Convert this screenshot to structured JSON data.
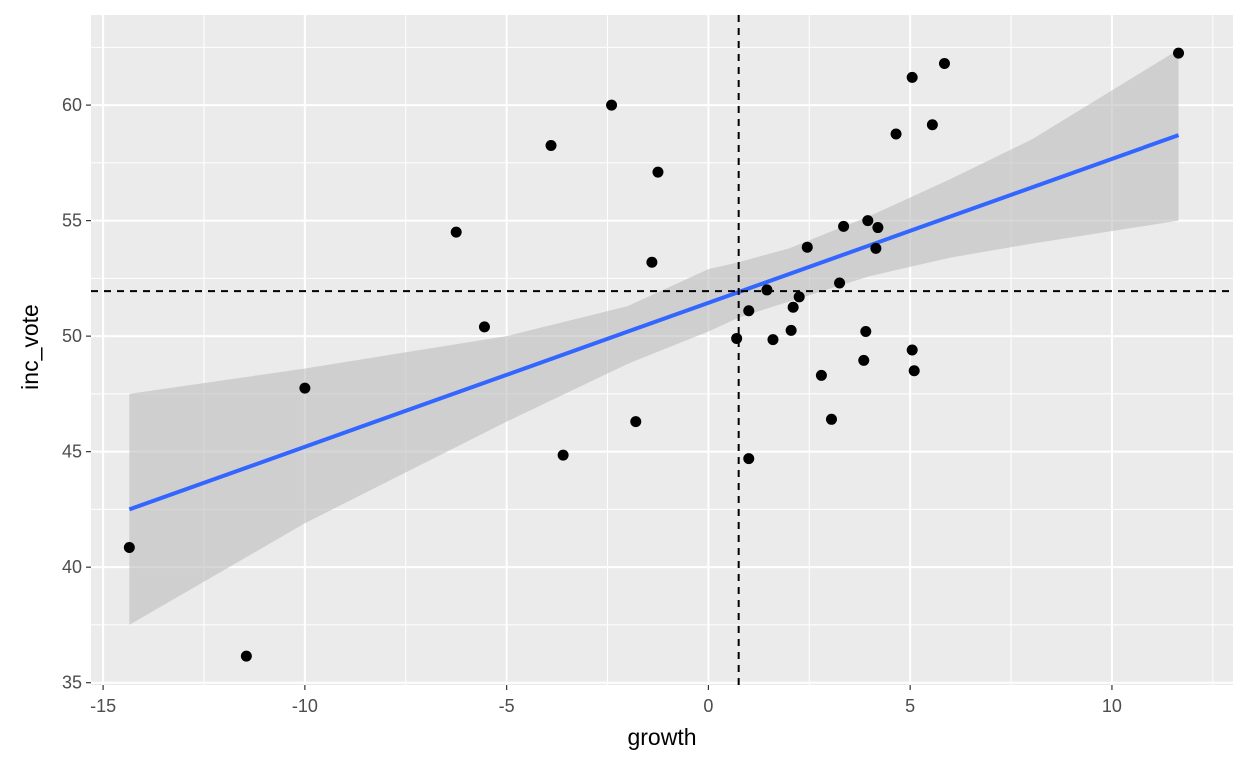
{
  "chart_data": {
    "type": "scatter",
    "title": "",
    "xlabel": "growth",
    "ylabel": "inc_vote",
    "xlim": [
      -15.3,
      13
    ],
    "ylim": [
      34.9,
      63.9
    ],
    "x_ticks": [
      -15,
      -10,
      -5,
      0,
      5,
      10
    ],
    "x_tick_labels": [
      "-15",
      "-10",
      "-5",
      "0",
      "5",
      "10"
    ],
    "y_ticks": [
      35,
      40,
      45,
      50,
      55,
      60
    ],
    "y_tick_labels": [
      "35",
      "40",
      "45",
      "50",
      "55",
      "60"
    ],
    "grid": true,
    "legend": "none",
    "points": [
      {
        "x": -14.35,
        "y": 40.85
      },
      {
        "x": -11.45,
        "y": 36.15
      },
      {
        "x": -10.0,
        "y": 47.75
      },
      {
        "x": -6.25,
        "y": 54.5
      },
      {
        "x": -5.55,
        "y": 50.4
      },
      {
        "x": -3.9,
        "y": 58.25
      },
      {
        "x": -3.6,
        "y": 44.85
      },
      {
        "x": -2.4,
        "y": 60.0
      },
      {
        "x": -1.8,
        "y": 46.3
      },
      {
        "x": -1.4,
        "y": 53.2
      },
      {
        "x": -1.25,
        "y": 57.1
      },
      {
        "x": 0.7,
        "y": 49.9
      },
      {
        "x": 1.0,
        "y": 44.7
      },
      {
        "x": 1.0,
        "y": 51.1
      },
      {
        "x": 1.45,
        "y": 52.0
      },
      {
        "x": 1.6,
        "y": 49.85
      },
      {
        "x": 2.05,
        "y": 50.25
      },
      {
        "x": 2.1,
        "y": 51.25
      },
      {
        "x": 2.25,
        "y": 51.7
      },
      {
        "x": 2.45,
        "y": 53.85
      },
      {
        "x": 2.8,
        "y": 48.3
      },
      {
        "x": 3.05,
        "y": 46.4
      },
      {
        "x": 3.25,
        "y": 52.3
      },
      {
        "x": 3.35,
        "y": 54.75
      },
      {
        "x": 3.85,
        "y": 48.95
      },
      {
        "x": 3.9,
        "y": 50.2
      },
      {
        "x": 3.95,
        "y": 55.0
      },
      {
        "x": 4.15,
        "y": 53.8
      },
      {
        "x": 4.2,
        "y": 54.7
      },
      {
        "x": 4.65,
        "y": 58.75
      },
      {
        "x": 5.05,
        "y": 49.4
      },
      {
        "x": 5.05,
        "y": 61.2
      },
      {
        "x": 5.1,
        "y": 48.5
      },
      {
        "x": 5.55,
        "y": 59.15
      },
      {
        "x": 5.85,
        "y": 61.8
      },
      {
        "x": 11.65,
        "y": 62.25
      }
    ],
    "regression": {
      "x": [
        -14.35,
        11.65
      ],
      "y": [
        42.5,
        58.7
      ],
      "color": "#3366ff"
    },
    "confidence_band": [
      {
        "x": -14.35,
        "lower": 37.5,
        "upper": 47.5
      },
      {
        "x": -10,
        "lower": 41.9,
        "upper": 48.6
      },
      {
        "x": -5,
        "lower": 46.3,
        "upper": 50.0
      },
      {
        "x": -2,
        "lower": 48.8,
        "upper": 51.3
      },
      {
        "x": 0,
        "lower": 50.2,
        "upper": 52.9
      },
      {
        "x": 0.75,
        "lower": 50.8,
        "upper": 53.2
      },
      {
        "x": 2,
        "lower": 51.5,
        "upper": 53.8
      },
      {
        "x": 4,
        "lower": 52.6,
        "upper": 55.2
      },
      {
        "x": 6,
        "lower": 53.4,
        "upper": 56.8
      },
      {
        "x": 8,
        "lower": 54.0,
        "upper": 58.5
      },
      {
        "x": 11.65,
        "lower": 55.0,
        "upper": 62.4
      }
    ],
    "reference_lines": {
      "vertical_x": 0.75,
      "horizontal_y": 51.95
    },
    "colors": {
      "panel": "#ebebeb",
      "grid": "#ffffff",
      "points": "#000000",
      "band": "#bdbdbd"
    }
  }
}
